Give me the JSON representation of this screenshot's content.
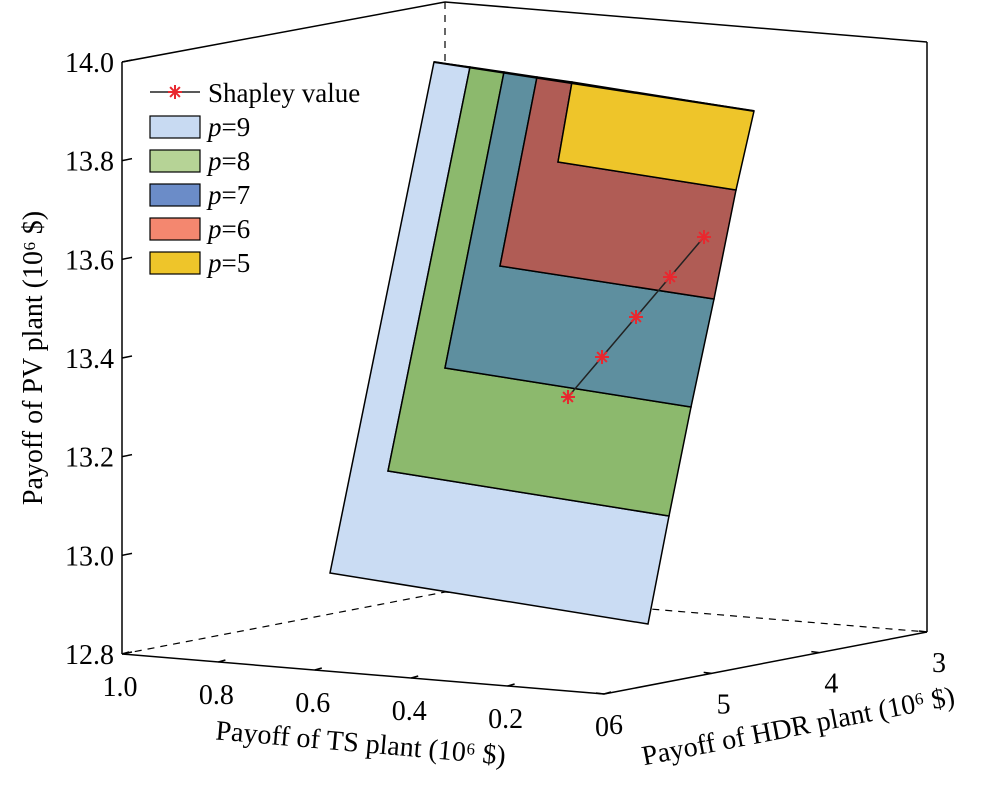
{
  "chart_data": {
    "type": "3d-surface-patches",
    "z_axis": {
      "label": "Payoff of PV plant (10⁶ $)",
      "ticks": [
        "12.8",
        "13.0",
        "13.2",
        "13.4",
        "13.6",
        "13.8",
        "14.0"
      ],
      "range": [
        12.8,
        14.0
      ]
    },
    "x_axis": {
      "label": "Payoff of TS plant (10⁶ $)",
      "ticks": [
        "1.0",
        "0.8",
        "0.6",
        "0.4",
        "0.2",
        "0"
      ],
      "range": [
        0,
        1.0
      ]
    },
    "y_axis": {
      "label": "Payoff of HDR plant (10⁶ $)",
      "ticks": [
        "6",
        "5",
        "4",
        "3"
      ],
      "range": [
        3,
        6
      ]
    },
    "legend": [
      {
        "key": "shapley",
        "label": "Shapley value",
        "kind": "line-marker",
        "color": "#e8282f"
      },
      {
        "key": "p9",
        "prefix": "p",
        "suffix": "=9",
        "kind": "patch",
        "color": "#c8daf2"
      },
      {
        "key": "p8",
        "prefix": "p",
        "suffix": "=8",
        "kind": "patch",
        "color": "#b6d396"
      },
      {
        "key": "p7",
        "prefix": "p",
        "suffix": "=7",
        "kind": "patch",
        "color": "#6b8cc8"
      },
      {
        "key": "p6",
        "prefix": "p",
        "suffix": "=6",
        "kind": "patch",
        "color": "#f4876f"
      },
      {
        "key": "p5",
        "prefix": "p",
        "suffix": "=5",
        "kind": "patch",
        "color": "#eec52a"
      }
    ],
    "shapley_series": {
      "name": "Shapley value",
      "points_z": [
        13.32,
        13.4,
        13.48,
        13.56,
        13.64
      ]
    },
    "legend_placement": "top-left"
  },
  "render": {
    "patch_fill": {
      "p9": "#cadcf3",
      "p8": "#8cb96d",
      "p7": "#5e8f9f",
      "p6": "#b05c55",
      "p5": "#eec52a"
    },
    "marker_color": "#e8282f",
    "line_color": "#222222"
  }
}
